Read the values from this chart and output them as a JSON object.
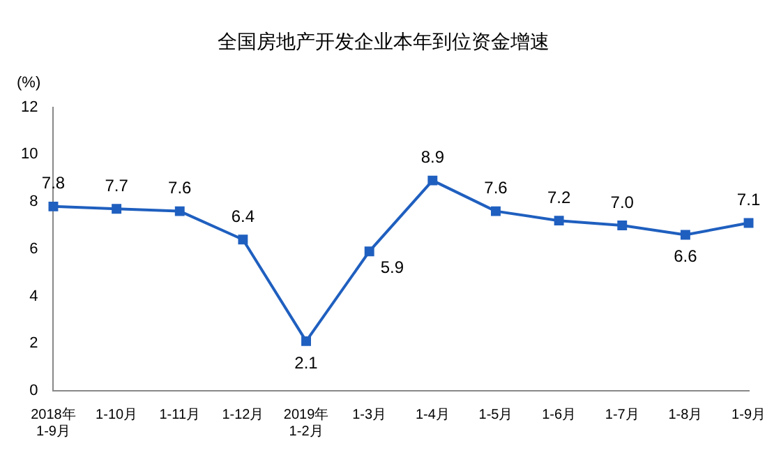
{
  "chart_data": {
    "type": "line",
    "title": "全国房地产开发企业本年到位资金增速",
    "ylabel": "(%)",
    "categories": [
      "2018年\n1-9月",
      "1-10月",
      "1-11月",
      "1-12月",
      "2019年\n1-2月",
      "1-3月",
      "1-4月",
      "1-5月",
      "1-6月",
      "1-7月",
      "1-8月",
      "1-9月"
    ],
    "series": [
      {
        "color": "#1f5fbf",
        "values": [
          7.8,
          7.7,
          7.6,
          6.4,
          2.1,
          5.9,
          8.9,
          7.6,
          7.2,
          7.0,
          6.6,
          7.1
        ],
        "value_labels": [
          "7.8",
          "7.7",
          "7.6",
          "6.4",
          "2.1",
          "5.9",
          "8.9",
          "7.6",
          "7.2",
          "7.0",
          "6.6",
          "7.1"
        ]
      }
    ],
    "ylim": [
      0,
      12
    ],
    "yticks": [
      0,
      2,
      4,
      6,
      8,
      10,
      12
    ],
    "grid": false,
    "legend": false,
    "marker": "square",
    "line_style": "solid"
  }
}
